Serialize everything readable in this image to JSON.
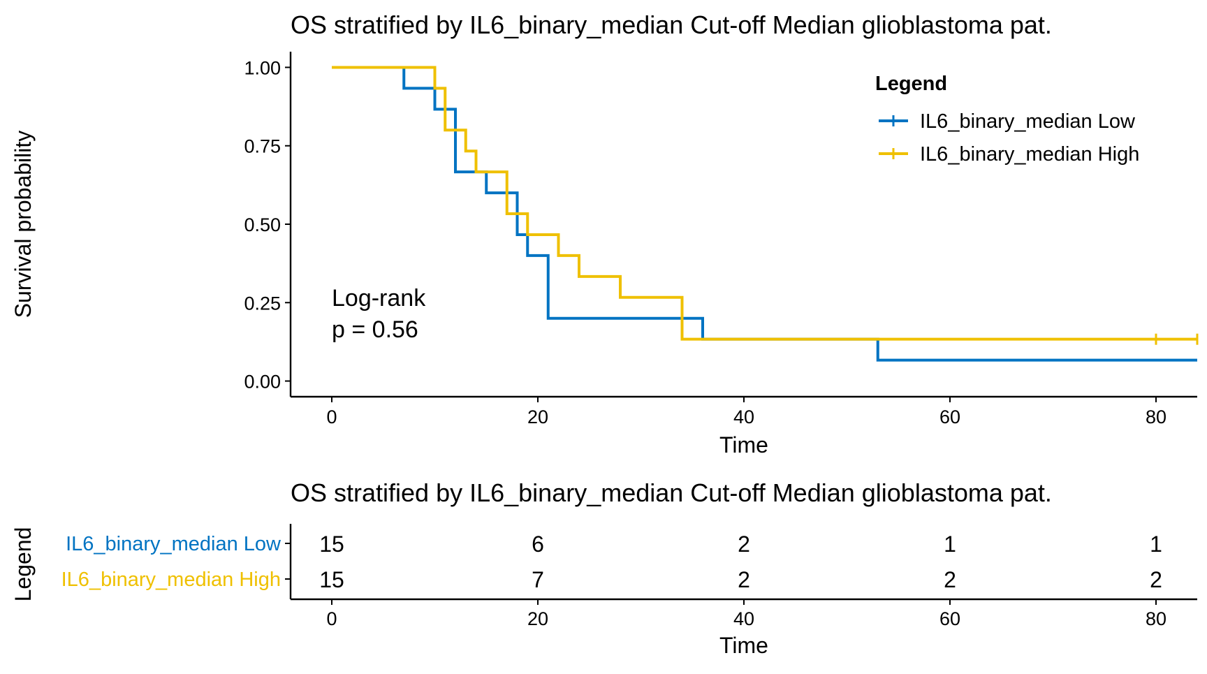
{
  "chart_data": [
    {
      "type": "line",
      "subtype": "kaplan-meier",
      "title": "OS stratified by IL6_binary_median Cut-off Median glioblastoma pat.",
      "xlabel": "Time",
      "ylabel": "Survival probability",
      "xlim": [
        -4,
        84
      ],
      "ylim": [
        -0.05,
        1.05
      ],
      "x_ticks": [
        0,
        20,
        40,
        60,
        80
      ],
      "y_ticks": [
        0,
        0.25,
        0.5,
        0.75,
        1.0
      ],
      "y_tick_labels": [
        "0.00",
        "0.25",
        "0.50",
        "0.75",
        "1.00"
      ],
      "grid": false,
      "legend": {
        "title": "Legend",
        "placement": "top-right"
      },
      "annotation": {
        "line1": "Log-rank",
        "line2": "p = 0.56",
        "x": 0,
        "y": 0.13
      },
      "series": [
        {
          "name": "IL6_binary_median Low",
          "color": "#0073C2",
          "steps": [
            [
              0,
              1.0
            ],
            [
              7,
              0.9333
            ],
            [
              10,
              0.8667
            ],
            [
              12,
              0.6667
            ],
            [
              15,
              0.6
            ],
            [
              18,
              0.4667
            ],
            [
              19,
              0.4
            ],
            [
              21,
              0.2
            ],
            [
              36,
              0.1333
            ],
            [
              53,
              0.0667
            ],
            [
              84,
              0.0667
            ]
          ],
          "censored": []
        },
        {
          "name": "IL6_binary_median High",
          "color": "#EFC000",
          "steps": [
            [
              0,
              1.0
            ],
            [
              10,
              0.9333
            ],
            [
              11,
              0.8
            ],
            [
              13,
              0.7333
            ],
            [
              14,
              0.6667
            ],
            [
              17,
              0.5333
            ],
            [
              19,
              0.4667
            ],
            [
              22,
              0.4
            ],
            [
              24,
              0.3333
            ],
            [
              28,
              0.2667
            ],
            [
              34,
              0.1333
            ],
            [
              84,
              0.1333
            ]
          ],
          "censored": [
            [
              80,
              0.1333
            ],
            [
              84,
              0.1333
            ]
          ]
        }
      ]
    },
    {
      "type": "table",
      "title": "OS stratified by IL6_binary_median Cut-off Median glioblastoma pat.",
      "xlabel": "Time",
      "ylabel": "Legend",
      "xlim": [
        -4,
        84
      ],
      "x_ticks": [
        0,
        20,
        40,
        60,
        80
      ],
      "times": [
        0,
        20,
        40,
        60,
        80
      ],
      "rows": [
        {
          "name": "IL6_binary_median Low",
          "color": "#0073C2",
          "values": [
            15,
            6,
            2,
            1,
            1
          ]
        },
        {
          "name": "IL6_binary_median High",
          "color": "#EFC000",
          "values": [
            15,
            7,
            2,
            2,
            2
          ]
        }
      ]
    }
  ]
}
